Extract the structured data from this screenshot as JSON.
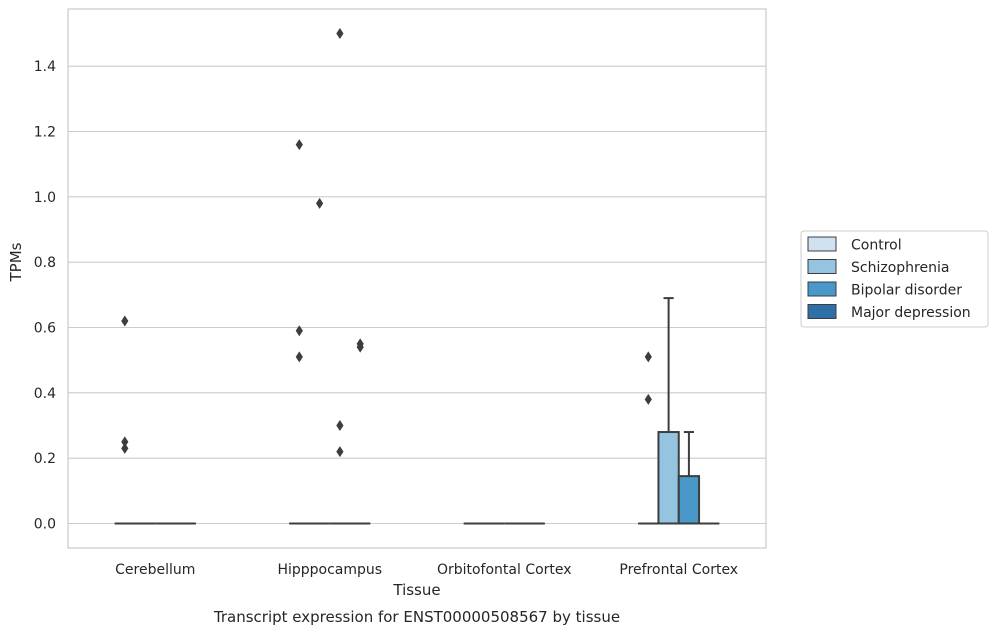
{
  "chart_data": {
    "type": "box",
    "title": "",
    "caption": "Transcript expression for ENST00000508567 by tissue",
    "xlabel": "Tissue",
    "ylabel": "TPMs",
    "ylim": [
      -0.075,
      1.575
    ],
    "yticks": [
      0.0,
      0.2,
      0.4,
      0.6,
      0.8,
      1.0,
      1.2,
      1.4
    ],
    "ytick_labels": [
      "0.0",
      "0.2",
      "0.4",
      "0.6",
      "0.8",
      "1.0",
      "1.2",
      "1.4"
    ],
    "grid": "horizontal",
    "legend_position": "right",
    "categories": [
      "Cerebellum",
      "Hipppocampus",
      "Orbitofontal Cortex",
      "Prefrontal Cortex"
    ],
    "series": [
      {
        "name": "Control",
        "color": "#d0e1f2",
        "boxes": [
          {
            "q1": 0,
            "median": 0,
            "q3": 0,
            "whisker_low": 0,
            "whisker_high": 0,
            "outliers": [
              0.62,
              0.25,
              0.23
            ]
          },
          {
            "q1": 0,
            "median": 0,
            "q3": 0,
            "whisker_low": 0,
            "whisker_high": 0,
            "outliers": [
              1.16,
              0.59,
              0.51
            ]
          },
          {
            "q1": 0,
            "median": 0,
            "q3": 0,
            "whisker_low": 0,
            "whisker_high": 0,
            "outliers": []
          },
          {
            "q1": 0,
            "median": 0,
            "q3": 0,
            "whisker_low": 0,
            "whisker_high": 0,
            "outliers": [
              0.51,
              0.38
            ]
          }
        ]
      },
      {
        "name": "Schizophrenia",
        "color": "#94c4df",
        "boxes": [
          {
            "q1": 0,
            "median": 0,
            "q3": 0,
            "whisker_low": 0,
            "whisker_high": 0,
            "outliers": []
          },
          {
            "q1": 0,
            "median": 0,
            "q3": 0,
            "whisker_low": 0,
            "whisker_high": 0,
            "outliers": [
              0.98
            ]
          },
          {
            "q1": 0,
            "median": 0,
            "q3": 0,
            "whisker_low": 0,
            "whisker_high": 0,
            "outliers": []
          },
          {
            "q1": 0,
            "median": 0,
            "q3": 0.28,
            "whisker_low": 0,
            "whisker_high": 0.69,
            "outliers": []
          }
        ]
      },
      {
        "name": "Bipolar disorder",
        "color": "#4a98c9",
        "boxes": [
          {
            "q1": 0,
            "median": 0,
            "q3": 0,
            "whisker_low": 0,
            "whisker_high": 0,
            "outliers": []
          },
          {
            "q1": 0,
            "median": 0,
            "q3": 0,
            "whisker_low": 0,
            "whisker_high": 0,
            "outliers": [
              1.5,
              0.3,
              0.22
            ]
          },
          {
            "q1": 0,
            "median": 0,
            "q3": 0,
            "whisker_low": 0,
            "whisker_high": 0,
            "outliers": []
          },
          {
            "q1": 0,
            "median": 0,
            "q3": 0.145,
            "whisker_low": 0,
            "whisker_high": 0.28,
            "outliers": []
          }
        ]
      },
      {
        "name": "Major depression",
        "color": "#2e6fa7",
        "boxes": [
          {
            "q1": 0,
            "median": 0,
            "q3": 0,
            "whisker_low": 0,
            "whisker_high": 0,
            "outliers": []
          },
          {
            "q1": 0,
            "median": 0,
            "q3": 0,
            "whisker_low": 0,
            "whisker_high": 0,
            "outliers": [
              0.55,
              0.54
            ]
          },
          {
            "q1": 0,
            "median": 0,
            "q3": 0,
            "whisker_low": 0,
            "whisker_high": 0,
            "outliers": []
          },
          {
            "q1": 0,
            "median": 0,
            "q3": 0,
            "whisker_low": 0,
            "whisker_high": 0,
            "outliers": []
          }
        ]
      }
    ]
  }
}
